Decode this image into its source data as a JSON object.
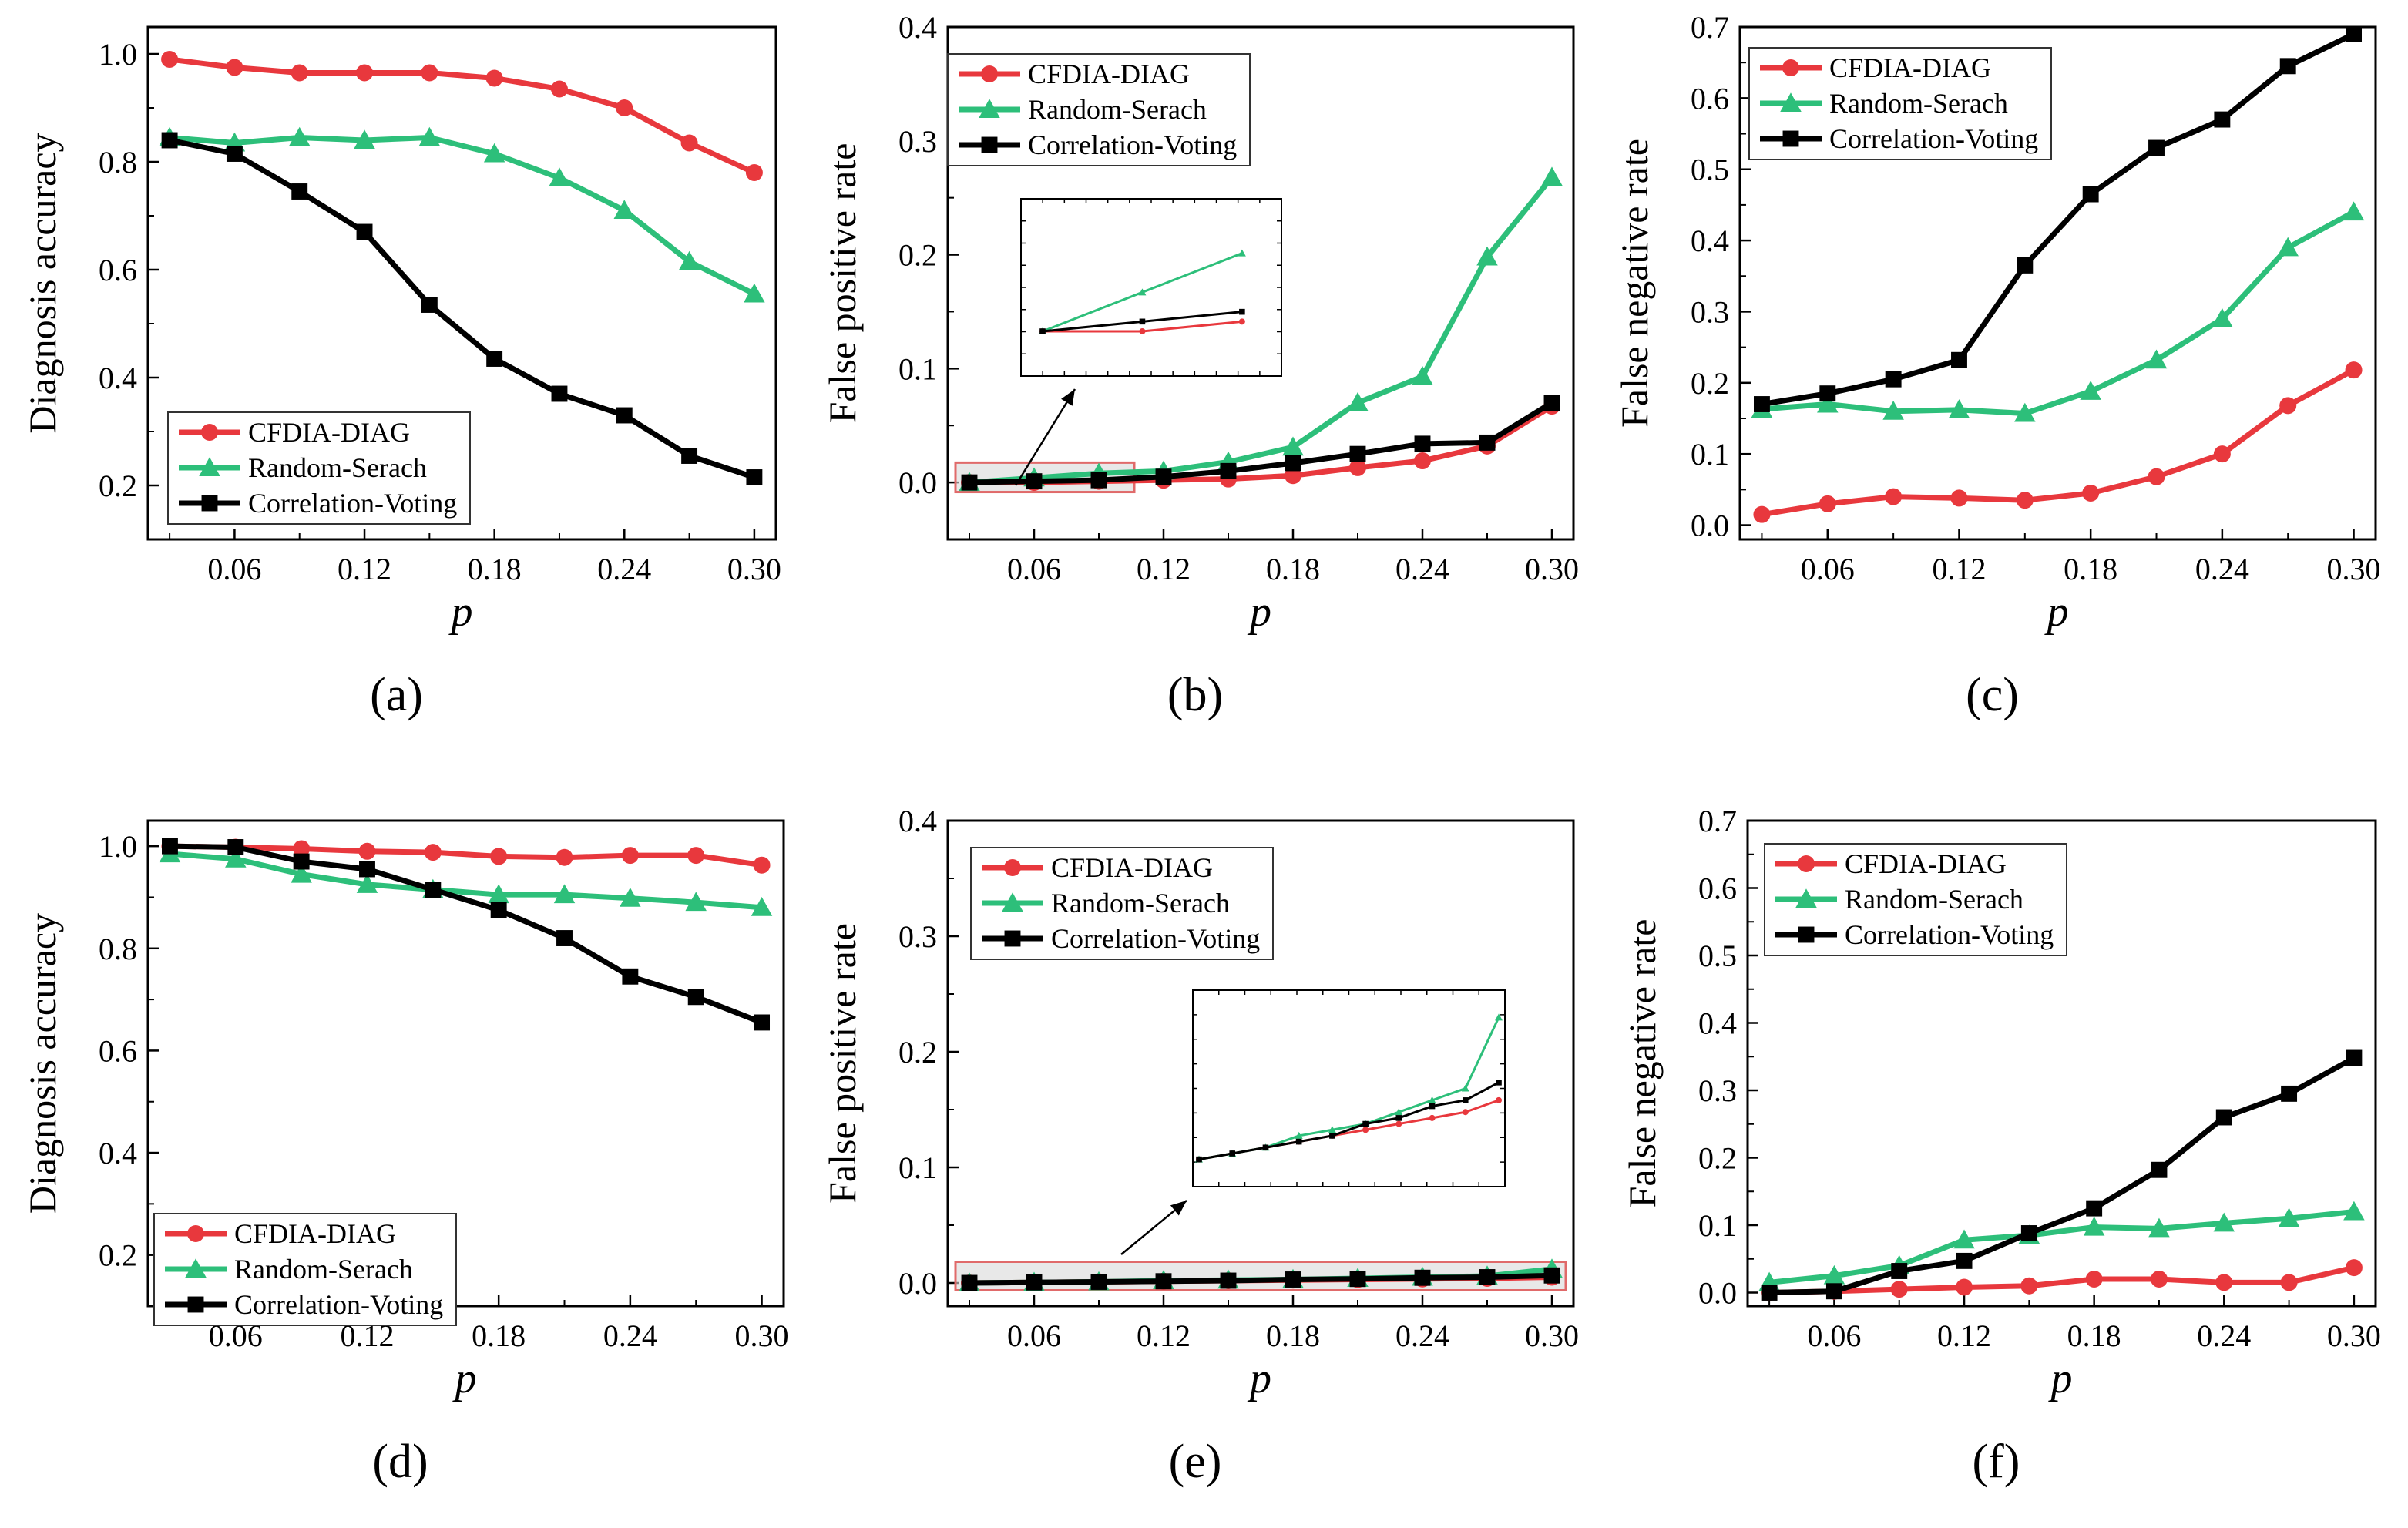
{
  "colors": {
    "cfdia": "#e8383d",
    "random": "#2dbf7a",
    "corr": "#000000",
    "highlight": "#e06a6a",
    "axis": "#000000"
  },
  "legend_labels": [
    "CFDIA-DIAG",
    "Random-Serach",
    "Correlation-Voting"
  ],
  "chart_data": [
    {
      "id": "a",
      "type": "line",
      "caption": "(a)",
      "xlabel": "p",
      "ylabel": "Diagnosis accuracy",
      "xlim": [
        0.02,
        0.31
      ],
      "ylim": [
        0.1,
        1.05
      ],
      "xticks": [
        "0.06",
        "0.12",
        "0.18",
        "0.24",
        "0.30"
      ],
      "yticks": [
        "0.2",
        "0.4",
        "0.6",
        "0.8",
        "1.0"
      ],
      "x": [
        0.03,
        0.06,
        0.09,
        0.12,
        0.15,
        0.18,
        0.21,
        0.24,
        0.27,
        0.3
      ],
      "series": [
        {
          "name": "CFDIA-DIAG",
          "marker": "circle",
          "values": [
            0.99,
            0.975,
            0.965,
            0.965,
            0.965,
            0.955,
            0.935,
            0.9,
            0.835,
            0.78
          ]
        },
        {
          "name": "Random-Serach",
          "marker": "triangle",
          "values": [
            0.845,
            0.835,
            0.845,
            0.84,
            0.845,
            0.815,
            0.77,
            0.71,
            0.615,
            0.555
          ]
        },
        {
          "name": "Correlation-Voting",
          "marker": "square",
          "values": [
            0.84,
            0.815,
            0.745,
            0.67,
            0.535,
            0.435,
            0.37,
            0.33,
            0.255,
            0.215
          ]
        }
      ],
      "legend": "bottom-left"
    },
    {
      "id": "b",
      "type": "line",
      "caption": "(b)",
      "xlabel": "p",
      "ylabel": "False positive rate",
      "xlim": [
        0.02,
        0.31
      ],
      "ylim": [
        -0.05,
        0.4
      ],
      "xticks": [
        "0.06",
        "0.12",
        "0.18",
        "0.24",
        "0.30"
      ],
      "yticks": [
        "0.0",
        "0.1",
        "0.2",
        "0.3",
        "0.4"
      ],
      "x": [
        0.03,
        0.06,
        0.09,
        0.12,
        0.15,
        0.18,
        0.21,
        0.24,
        0.27,
        0.3
      ],
      "series": [
        {
          "name": "CFDIA-DIAG",
          "marker": "circle",
          "values": [
            0.0,
            0.0,
            0.001,
            0.002,
            0.003,
            0.006,
            0.013,
            0.019,
            0.032,
            0.067
          ]
        },
        {
          "name": "Random-Serach",
          "marker": "triangle",
          "values": [
            0.0,
            0.004,
            0.008,
            0.01,
            0.018,
            0.031,
            0.07,
            0.093,
            0.198,
            0.268
          ]
        },
        {
          "name": "Correlation-Voting",
          "marker": "square",
          "values": [
            0.0,
            0.001,
            0.002,
            0.005,
            0.01,
            0.017,
            0.025,
            0.034,
            0.035,
            0.07
          ]
        }
      ],
      "legend": "top-left",
      "inset": {
        "x_range": [
          0.03,
          0.1
        ],
        "y_range": [
          -0.003,
          0.012
        ]
      }
    },
    {
      "id": "c",
      "type": "line",
      "caption": "(c)",
      "xlabel": "p",
      "ylabel": "False negative rate",
      "xlim": [
        0.02,
        0.31
      ],
      "ylim": [
        -0.02,
        0.7
      ],
      "xticks": [
        "0.06",
        "0.12",
        "0.18",
        "0.24",
        "0.30"
      ],
      "yticks": [
        "0.0",
        "0.1",
        "0.2",
        "0.3",
        "0.4",
        "0.5",
        "0.6",
        "0.7"
      ],
      "x": [
        0.03,
        0.06,
        0.09,
        0.12,
        0.15,
        0.18,
        0.21,
        0.24,
        0.27,
        0.3
      ],
      "series": [
        {
          "name": "CFDIA-DIAG",
          "marker": "circle",
          "values": [
            0.015,
            0.03,
            0.04,
            0.038,
            0.035,
            0.045,
            0.068,
            0.1,
            0.168,
            0.218
          ]
        },
        {
          "name": "Random-Serach",
          "marker": "triangle",
          "values": [
            0.163,
            0.17,
            0.16,
            0.162,
            0.157,
            0.188,
            0.232,
            0.29,
            0.39,
            0.44
          ]
        },
        {
          "name": "Correlation-Voting",
          "marker": "square",
          "values": [
            0.17,
            0.185,
            0.205,
            0.232,
            0.365,
            0.465,
            0.53,
            0.57,
            0.645,
            0.69
          ]
        }
      ],
      "legend": "top-left"
    },
    {
      "id": "d",
      "type": "line",
      "caption": "(d)",
      "xlabel": "p",
      "ylabel": "Diagnosis accuracy",
      "xlim": [
        0.02,
        0.31
      ],
      "ylim": [
        0.1,
        1.05
      ],
      "xticks": [
        "0.06",
        "0.12",
        "0.18",
        "0.24",
        "0.30"
      ],
      "yticks": [
        "0.2",
        "0.4",
        "0.6",
        "0.8",
        "1.0"
      ],
      "x": [
        0.03,
        0.06,
        0.09,
        0.12,
        0.15,
        0.18,
        0.21,
        0.24,
        0.27,
        0.3
      ],
      "series": [
        {
          "name": "CFDIA-DIAG",
          "marker": "circle",
          "values": [
            1.0,
            0.998,
            0.995,
            0.99,
            0.988,
            0.98,
            0.978,
            0.982,
            0.982,
            0.963
          ]
        },
        {
          "name": "Random-Serach",
          "marker": "triangle",
          "values": [
            0.985,
            0.975,
            0.945,
            0.925,
            0.915,
            0.905,
            0.905,
            0.898,
            0.89,
            0.88
          ]
        },
        {
          "name": "Correlation-Voting",
          "marker": "square",
          "values": [
            1.0,
            0.998,
            0.97,
            0.955,
            0.915,
            0.875,
            0.82,
            0.745,
            0.705,
            0.655
          ]
        }
      ],
      "legend": "bottom-left"
    },
    {
      "id": "e",
      "type": "line",
      "caption": "(e)",
      "xlabel": "p",
      "ylabel": "False positive rate",
      "xlim": [
        0.02,
        0.31
      ],
      "ylim": [
        -0.02,
        0.4
      ],
      "xticks": [
        "0.06",
        "0.12",
        "0.18",
        "0.24",
        "0.30"
      ],
      "yticks": [
        "0.0",
        "0.1",
        "0.2",
        "0.3",
        "0.4"
      ],
      "x": [
        0.03,
        0.06,
        0.09,
        0.12,
        0.15,
        0.18,
        0.21,
        0.24,
        0.27,
        0.3
      ],
      "series": [
        {
          "name": "CFDIA-DIAG",
          "marker": "circle",
          "values": [
            0.0,
            0.0005,
            0.001,
            0.0015,
            0.002,
            0.0025,
            0.003,
            0.0035,
            0.004,
            0.005
          ]
        },
        {
          "name": "Random-Serach",
          "marker": "triangle",
          "values": [
            0.0,
            0.0005,
            0.001,
            0.002,
            0.0025,
            0.003,
            0.004,
            0.005,
            0.006,
            0.012
          ]
        },
        {
          "name": "Correlation-Voting",
          "marker": "square",
          "values": [
            0.0,
            0.0005,
            0.001,
            0.0015,
            0.002,
            0.003,
            0.0035,
            0.0045,
            0.005,
            0.0065
          ]
        }
      ],
      "legend": "top-left",
      "inset": {
        "x_range": [
          0.03,
          0.3
        ],
        "y_range": [
          -0.001,
          0.013
        ]
      }
    },
    {
      "id": "f",
      "type": "line",
      "caption": "(f)",
      "xlabel": "p",
      "ylabel": "False negative rate",
      "xlim": [
        0.02,
        0.31
      ],
      "ylim": [
        -0.02,
        0.7
      ],
      "xticks": [
        "0.06",
        "0.12",
        "0.18",
        "0.24",
        "0.30"
      ],
      "yticks": [
        "0.0",
        "0.1",
        "0.2",
        "0.3",
        "0.4",
        "0.5",
        "0.6",
        "0.7"
      ],
      "x": [
        0.03,
        0.06,
        0.09,
        0.12,
        0.15,
        0.18,
        0.21,
        0.24,
        0.27,
        0.3
      ],
      "series": [
        {
          "name": "CFDIA-DIAG",
          "marker": "circle",
          "values": [
            0.0,
            0.002,
            0.005,
            0.008,
            0.01,
            0.02,
            0.02,
            0.015,
            0.015,
            0.037
          ]
        },
        {
          "name": "Random-Serach",
          "marker": "triangle",
          "values": [
            0.015,
            0.025,
            0.04,
            0.078,
            0.085,
            0.097,
            0.095,
            0.103,
            0.11,
            0.12
          ]
        },
        {
          "name": "Correlation-Voting",
          "marker": "square",
          "values": [
            0.0,
            0.002,
            0.032,
            0.047,
            0.088,
            0.125,
            0.182,
            0.26,
            0.295,
            0.348
          ]
        }
      ],
      "legend": "top-left"
    }
  ]
}
